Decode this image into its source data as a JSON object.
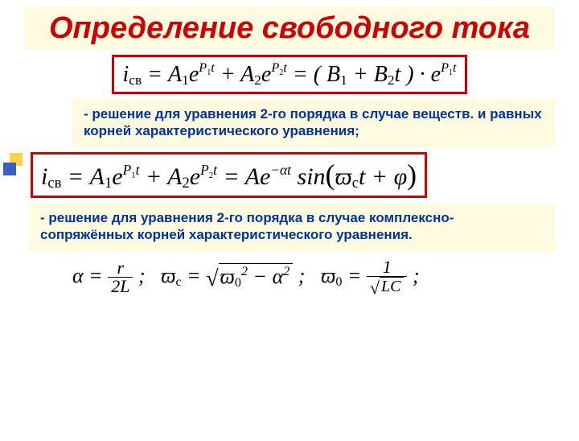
{
  "colors": {
    "title_text": "#cc0000",
    "title_bg": "#fffbe0",
    "desc_text": "#003399",
    "desc_bg": "#fffbe0",
    "eq_border": "#cc0000",
    "page_bg": "#ffffff"
  },
  "title": "Определение свободного тока",
  "equation1_html": "i<sub>св</sub> = A<sub>1</sub>e<span class='exp'>P<sub>1</sub>t</span> + A<sub>2</sub>e<span class='exp'>P<sub>2</sub>t</span> = ( B<sub>1</sub> + B<sub>2</sub>t ) · e<span class='exp'>P<sub>1</sub>t</span>",
  "desc1": "- решение для уравнения 2-го порядка в случае веществ. и равных корней характеристического уравнения;",
  "equation2_html": "i<sub>св</sub> = A<sub>1</sub>e<span class='exp'>P<sub>1</sub>t</span> + A<sub>2</sub>e<span class='exp'>P<sub>2</sub>t</span> = Ae<span class='exp'>−αt</span> sin<span class='lbrace'>(</span>ϖ<sub>c</sub>t + φ<span class='lbrace'>)</span>",
  "desc2": "- решение для уравнения 2-го порядка в случае комплексно-сопряжённых корней характеристического уравнения.",
  "equation3": {
    "alpha_num": "r",
    "alpha_den": "2L",
    "omega_c_body": "ϖ<sub>0</sub><sup>2</sup> − α<sup>2</sup>",
    "omega_0_num": "1",
    "omega_0_den": "LC"
  }
}
